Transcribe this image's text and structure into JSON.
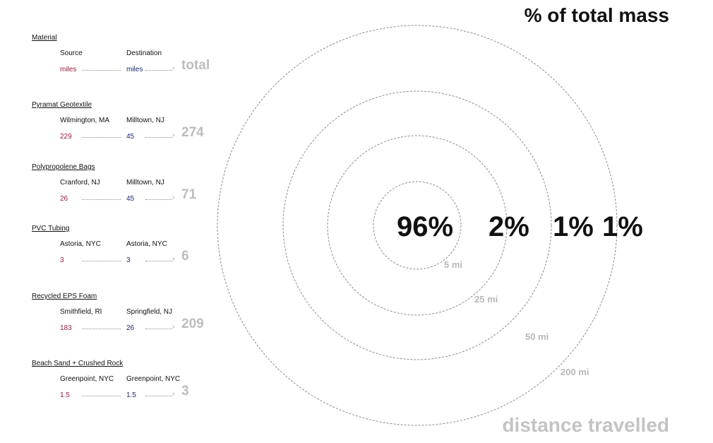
{
  "colors": {
    "source": "#9b1b3a",
    "destination": "#1f2a6e",
    "total": "#bdbdbd"
  },
  "header": {
    "material_label": "Material",
    "source_label": "Source",
    "destination_label": "Destination",
    "source_value": "miles",
    "destination_value": "miles",
    "total_label": "total"
  },
  "materials": [
    {
      "name": "Pyramat Geotextile",
      "source": "Wilmington, MA",
      "destination": "Milltown, NJ",
      "source_miles": "229",
      "destination_miles": "45",
      "total": "274"
    },
    {
      "name": "Polypropolene Bags",
      "source": "Cranford, NJ",
      "destination": "Milltown, NJ",
      "source_miles": "26",
      "destination_miles": "45",
      "total": "71"
    },
    {
      "name": "PVC Tubing",
      "source": "Astoria, NYC",
      "destination": "Astoria, NYC",
      "source_miles": "3",
      "destination_miles": "3",
      "total": "6"
    },
    {
      "name": "Recycled EPS Foam",
      "source": "Smithfield, RI",
      "destination": "Springfield, NJ",
      "source_miles": "183",
      "destination_miles": "26",
      "total": "209"
    },
    {
      "name": "Beach Sand + Crushed Rock",
      "source": "Greenpoint, NYC",
      "destination": "Greenpoint, NYC",
      "source_miles": "1.5",
      "destination_miles": "1.5",
      "total": "3"
    }
  ],
  "diagram": {
    "title": "% of total mass",
    "subtitle": "distance travelled",
    "rings": [
      {
        "label": "5 mi",
        "percent": "96%"
      },
      {
        "label": "25 mi",
        "percent": "2%"
      },
      {
        "label": "50 mi",
        "percent": "1%"
      },
      {
        "label": "200 mi",
        "percent": "1%"
      }
    ]
  }
}
